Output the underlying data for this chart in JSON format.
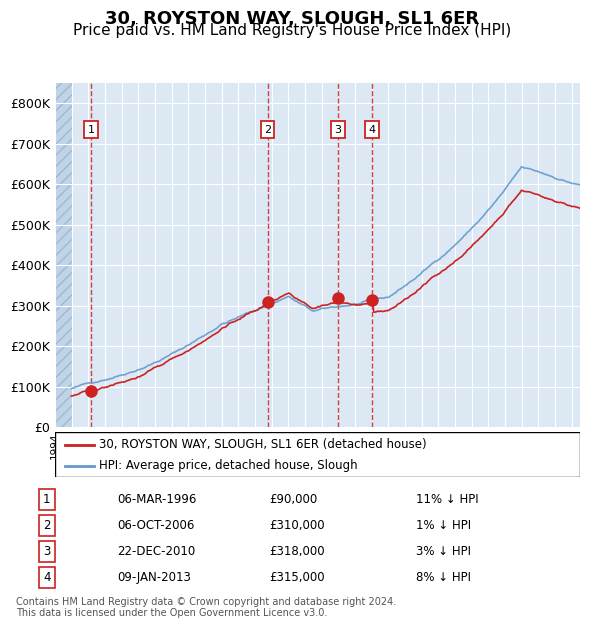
{
  "title": "30, ROYSTON WAY, SLOUGH, SL1 6ER",
  "subtitle": "Price paid vs. HM Land Registry's House Price Index (HPI)",
  "title_fontsize": 13,
  "subtitle_fontsize": 11,
  "ylim": [
    0,
    850000
  ],
  "yticks": [
    0,
    100000,
    200000,
    300000,
    400000,
    500000,
    600000,
    700000,
    800000
  ],
  "ytick_labels": [
    "£0",
    "£100K",
    "£200K",
    "£300K",
    "£400K",
    "£500K",
    "£600K",
    "£700K",
    "£800K"
  ],
  "xlim_start": 1994.0,
  "xlim_end": 2025.5,
  "plot_bg_color": "#dce9f5",
  "grid_color": "#ffffff",
  "hpi_color": "#6699cc",
  "price_color": "#cc2222",
  "sale_marker_size": 8,
  "transactions": [
    {
      "num": 1,
      "date_dec": 1996.18,
      "price": 90000,
      "label": "06-MAR-1996",
      "pct": "11%"
    },
    {
      "num": 2,
      "date_dec": 2006.76,
      "price": 310000,
      "label": "06-OCT-2006",
      "pct": "1%"
    },
    {
      "num": 3,
      "date_dec": 2010.98,
      "price": 318000,
      "label": "22-DEC-2010",
      "pct": "3%"
    },
    {
      "num": 4,
      "date_dec": 2013.03,
      "price": 315000,
      "label": "09-JAN-2013",
      "pct": "8%"
    }
  ],
  "legend_line1": "30, ROYSTON WAY, SLOUGH, SL1 6ER (detached house)",
  "legend_line2": "HPI: Average price, detached house, Slough",
  "footer": "Contains HM Land Registry data © Crown copyright and database right 2024.\nThis data is licensed under the Open Government Licence v3.0.",
  "table_rows": [
    [
      "1",
      "06-MAR-1996",
      "£90,000",
      "11% ↓ HPI"
    ],
    [
      "2",
      "06-OCT-2006",
      "£310,000",
      "1% ↓ HPI"
    ],
    [
      "3",
      "22-DEC-2010",
      "£318,000",
      "3% ↓ HPI"
    ],
    [
      "4",
      "09-JAN-2013",
      "£315,000",
      "8% ↓ HPI"
    ]
  ]
}
